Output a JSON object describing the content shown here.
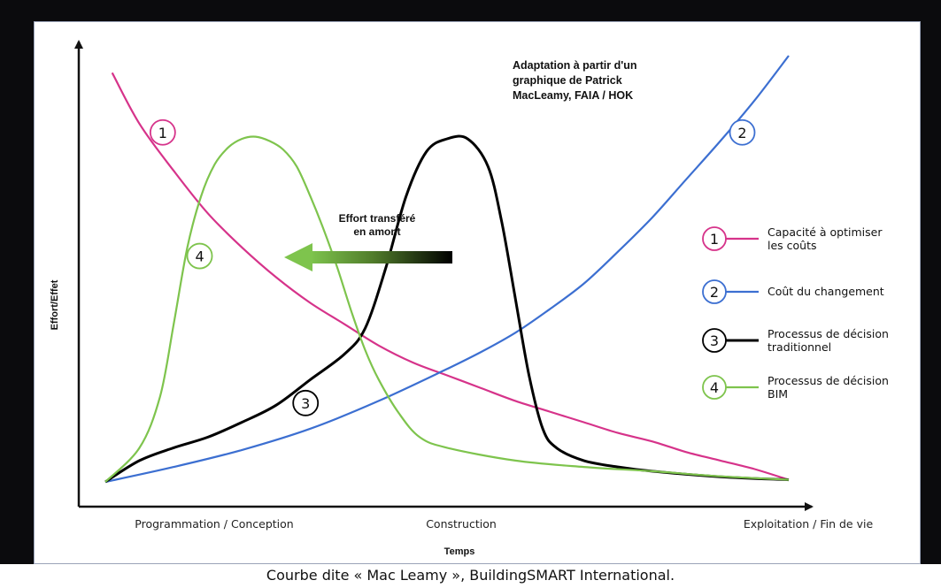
{
  "caption": "Courbe dite « Mac Leamy », BuildingSMART International.",
  "chart_data": {
    "type": "line",
    "note": "Adaptation à partir d'un graphique de  Patrick MacLeamy, FAIA / HOK",
    "xlabel": "Temps",
    "ylabel": "Effort/Effet",
    "x_ticks": [
      "Programmation / Conception",
      "Construction",
      "Exploitation / Fin de vie"
    ],
    "xlim": [
      0,
      100
    ],
    "ylim": [
      0,
      100
    ],
    "annotation": {
      "text": "Effort transféré en amont",
      "lines": [
        "Effort transféré",
        "en amont"
      ]
    },
    "series": [
      {
        "id": "1",
        "name": "Capacité à optimiser les coûts",
        "name_lines": [
          "Capacité à optimiser",
          "les coûts"
        ],
        "color": "#d6338a",
        "x": [
          1,
          5,
          10,
          15,
          20,
          25,
          30,
          35,
          40,
          45,
          50,
          55,
          60,
          65,
          70,
          75,
          80,
          85,
          90,
          95,
          100
        ],
        "y": [
          96,
          84,
          73,
          63,
          55,
          48,
          42,
          37,
          32,
          28,
          25,
          22,
          19,
          16.5,
          14,
          11.5,
          9.5,
          7,
          5,
          3,
          0.5
        ]
      },
      {
        "id": "2",
        "name": "Coût du changement",
        "name_lines": [
          "Coût du changement"
        ],
        "color": "#3c6fd1",
        "x": [
          0,
          10,
          20,
          30,
          40,
          50,
          55,
          60,
          65,
          70,
          75,
          80,
          85,
          90,
          95,
          100
        ],
        "y": [
          0,
          3.5,
          7.5,
          12.5,
          19,
          26.5,
          30.5,
          35,
          40.5,
          46.5,
          54,
          62,
          71,
          80,
          89.5,
          100
        ]
      },
      {
        "id": "3",
        "name": "Processus de décision traditionnel",
        "name_lines": [
          "Processus de décision",
          "traditionnel"
        ],
        "color": "#000000",
        "x": [
          0,
          5,
          10,
          15,
          20,
          25,
          30,
          35,
          38,
          41,
          44,
          47,
          50,
          53,
          56,
          58,
          60,
          62,
          64,
          66,
          70,
          75,
          80,
          90,
          100
        ],
        "y": [
          0,
          5,
          8,
          10.5,
          14,
          18,
          24,
          30,
          36,
          50,
          67,
          77.5,
          80.5,
          80.5,
          74,
          61,
          43,
          25,
          12.5,
          8,
          5,
          3.5,
          2.5,
          1.2,
          0.5
        ]
      },
      {
        "id": "4",
        "name": "Processus de décision BIM",
        "name_lines": [
          "Processus de décision",
          "BIM"
        ],
        "color": "#7ec44d",
        "x": [
          0,
          5,
          8,
          10,
          12,
          14,
          16,
          18,
          20,
          22,
          24,
          26,
          28,
          30,
          32,
          34,
          36,
          38,
          40,
          43,
          46,
          50,
          60,
          70,
          80,
          90,
          100
        ],
        "y": [
          0,
          8,
          20,
          37,
          55,
          67,
          74.5,
          78.5,
          80.5,
          81,
          80,
          78,
          74,
          67,
          59,
          50,
          40,
          31,
          24,
          16,
          10.5,
          8,
          5,
          3.5,
          2.5,
          1.3,
          0.5
        ]
      }
    ],
    "label_positions": [
      {
        "id": "1",
        "x": 8.4,
        "y": 82
      },
      {
        "id": "2",
        "x": 93.2,
        "y": 82
      },
      {
        "id": "3",
        "x": 29.3,
        "y": 18.5
      },
      {
        "id": "4",
        "x": 13.8,
        "y": 53
      }
    ],
    "legend_placement": "right",
    "grid": false
  }
}
